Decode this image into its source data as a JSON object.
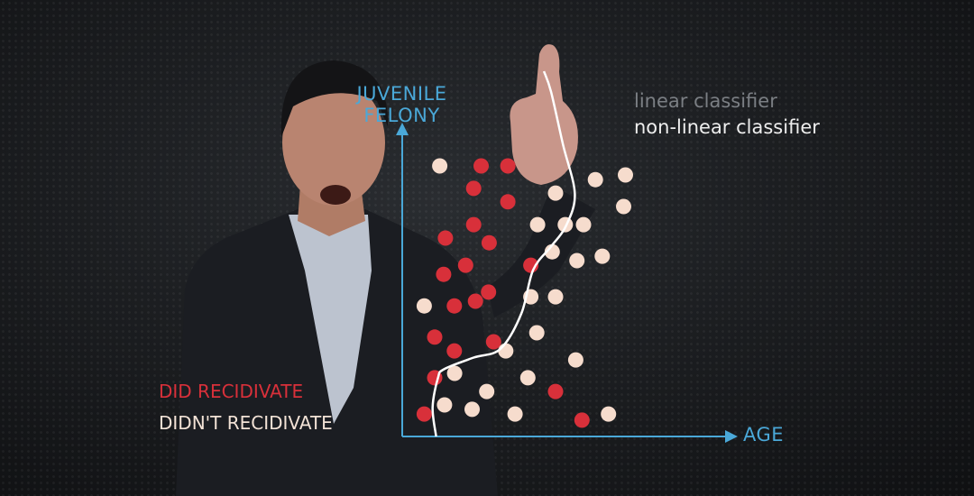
{
  "colors": {
    "did_recidivate": "#d8303a",
    "didnt_recidivate": "#f6dccd",
    "axis": "#4aa8d8",
    "boundary": "#ffffff"
  },
  "legend": {
    "linear_classifier": "linear classifier",
    "non_linear_classifier": "non-linear classifier",
    "did_recidivate": "DID RECIDIVATE",
    "didnt_recidivate": "DIDN'T RECIDIVATE"
  },
  "chart_data": {
    "type": "scatter",
    "title": "",
    "xlabel": "AGE",
    "ylabel_lines": [
      "JUVENILE",
      "FELONY"
    ],
    "xlim": [
      0,
      100
    ],
    "ylim": [
      0,
      100
    ],
    "grid": false,
    "legend_placement": "bottom-left",
    "series": [
      {
        "name": "DID RECIDIVATE",
        "color": "#d8303a",
        "points": [
          [
            26.5,
            92.6
          ],
          [
            35.5,
            92.6
          ],
          [
            24.0,
            84.9
          ],
          [
            35.5,
            80.3
          ],
          [
            24.0,
            72.5
          ],
          [
            14.5,
            67.9
          ],
          [
            29.2,
            66.3
          ],
          [
            21.3,
            58.6
          ],
          [
            43.2,
            58.6
          ],
          [
            13.9,
            55.5
          ],
          [
            29.0,
            49.4
          ],
          [
            17.5,
            44.7
          ],
          [
            24.6,
            46.3
          ],
          [
            10.9,
            34.0
          ],
          [
            30.7,
            32.4
          ],
          [
            17.5,
            29.3
          ],
          [
            10.9,
            20.1
          ],
          [
            51.5,
            15.4
          ],
          [
            7.4,
            7.7
          ],
          [
            60.4,
            5.6
          ]
        ]
      },
      {
        "name": "DIDN'T RECIDIVATE",
        "color": "#f6dccd",
        "points": [
          [
            12.6,
            92.6
          ],
          [
            75.0,
            89.5
          ],
          [
            64.9,
            87.9
          ],
          [
            51.5,
            83.3
          ],
          [
            74.4,
            78.7
          ],
          [
            45.5,
            72.5
          ],
          [
            54.8,
            72.5
          ],
          [
            60.9,
            72.5
          ],
          [
            50.4,
            63.2
          ],
          [
            58.7,
            60.2
          ],
          [
            67.2,
            61.7
          ],
          [
            43.2,
            47.8
          ],
          [
            51.5,
            47.8
          ],
          [
            7.4,
            44.7
          ],
          [
            45.2,
            35.5
          ],
          [
            34.8,
            29.3
          ],
          [
            58.3,
            26.2
          ],
          [
            17.6,
            21.6
          ],
          [
            42.2,
            20.1
          ],
          [
            28.4,
            15.4
          ],
          [
            14.2,
            10.8
          ],
          [
            23.5,
            9.3
          ],
          [
            37.9,
            7.7
          ],
          [
            69.3,
            7.7
          ]
        ]
      }
    ],
    "decision_boundary": {
      "name": "non-linear classifier",
      "points": [
        [
          11.4,
          0
        ],
        [
          10.2,
          10
        ],
        [
          12.0,
          20
        ],
        [
          14.0,
          23
        ],
        [
          24.0,
          27
        ],
        [
          33.0,
          30
        ],
        [
          40.0,
          42
        ],
        [
          44.0,
          57
        ],
        [
          50.0,
          65
        ],
        [
          55.0,
          72
        ],
        [
          58.0,
          83
        ],
        [
          54.0,
          100
        ],
        [
          50.0,
          118
        ],
        [
          47.6,
          125
        ]
      ]
    }
  }
}
